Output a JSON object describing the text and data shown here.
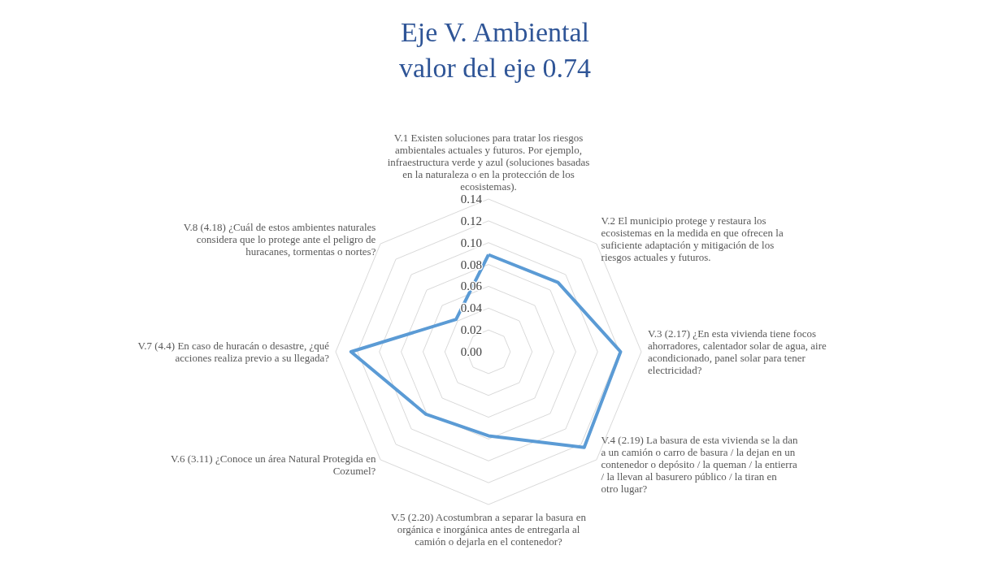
{
  "chart_data": {
    "type": "radar",
    "title": "Eje V. Ambiental\nvalor del eje 0.74",
    "categories": [
      "V.1 Existen soluciones para tratar los riesgos ambientales actuales y futuros. Por ejemplo, infraestructura verde y azul (soluciones basadas en la naturaleza o en la protección de los ecosistemas).",
      "V.2 El municipio protege y restaura los ecosistemas en la medida en que ofrecen la suficiente adaptación y mitigación de los riesgos actuales y futuros.",
      "V.3 (2.17) ¿En esta vivienda tiene focos ahorradores, calentador solar de agua, aire acondicionado, panel solar para tener electricidad?",
      "V.4 (2.19) La basura de esta vivienda se la dan a un camión o carro de basura / la dejan en un contenedor o depósito / la queman / la entierra / la llevan al basurero público / la tiran en otro lugar?",
      "V.5 (2.20) Acostumbran a separar la basura en orgánica e inorgánica antes de entregarla al camión o dejarla en el contenedor?",
      "V.6 (3.11) ¿Conoce un área Natural Protegida en Cozumel?",
      "V.7 (4.4) En caso de huracán o desastre, ¿qué acciones realiza previo a su llegada?",
      "V.8 (4.18) ¿Cuál de estos ambientes naturales considera que lo protege ante el peligro de huracanes, tormentas o nortes?"
    ],
    "series": [
      {
        "color": "#5b9bd5",
        "values": [
          0.089,
          0.09,
          0.121,
          0.124,
          0.077,
          0.081,
          0.126,
          0.042
        ]
      }
    ],
    "ylim": [
      0,
      0.14
    ],
    "yticks": [
      {
        "value": 0,
        "label": "0.00"
      },
      {
        "value": 0.02,
        "label": "0.02"
      },
      {
        "value": 0.04,
        "label": "0.04"
      },
      {
        "value": 0.06,
        "label": "0.06"
      },
      {
        "value": 0.08,
        "label": "0.08"
      },
      {
        "value": 0.1,
        "label": "0.10"
      },
      {
        "value": 0.12,
        "label": "0.12"
      },
      {
        "value": 0.14,
        "label": "0.14"
      }
    ],
    "grid": true,
    "marker": "none"
  }
}
